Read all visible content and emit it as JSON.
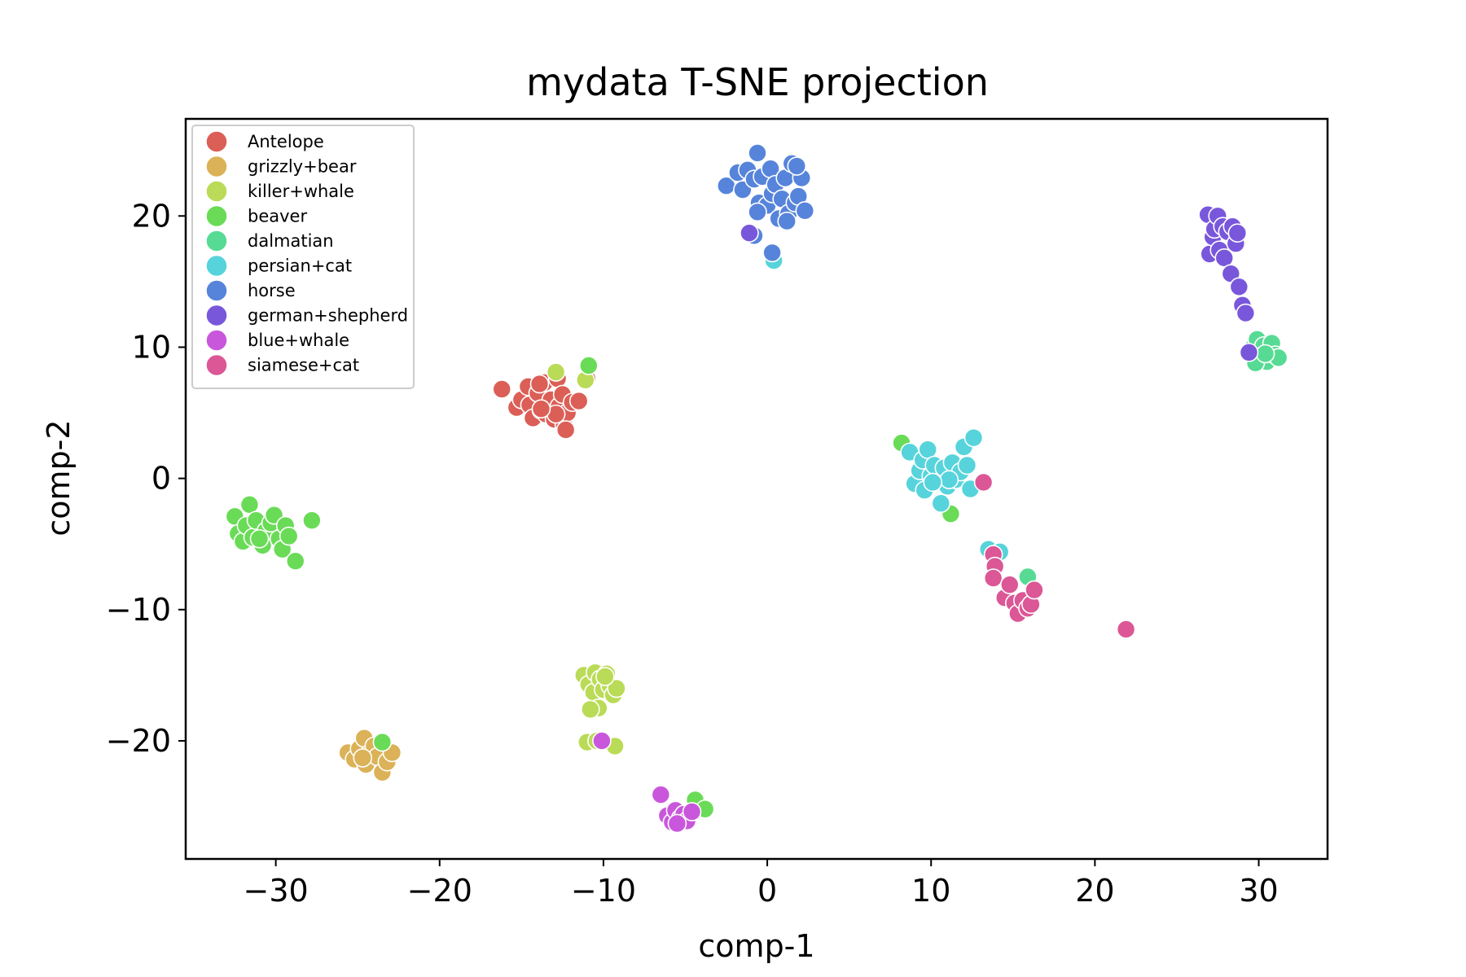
{
  "chart_data": {
    "type": "scatter",
    "title": "mydata T-SNE projection",
    "xlabel": "comp-1",
    "ylabel": "comp-2",
    "xlim": [
      -35.5,
      34.2
    ],
    "ylim": [
      -29.0,
      27.4
    ],
    "xticks": [
      -30,
      -20,
      -10,
      0,
      10,
      20,
      30
    ],
    "yticks": [
      -20,
      -10,
      0,
      10,
      20
    ],
    "xtick_labels": [
      "−30",
      "−20",
      "−10",
      "0",
      "10",
      "20",
      "30"
    ],
    "ytick_labels": [
      "−20",
      "−10",
      "0",
      "10",
      "20"
    ],
    "grid": false,
    "legend": "top-left",
    "series": [
      {
        "name": "Antelope",
        "color": "#db5f57",
        "points": [
          [
            -16.2,
            6.8
          ],
          [
            -15.3,
            5.4
          ],
          [
            -15.0,
            6.0
          ],
          [
            -14.6,
            7.0
          ],
          [
            -14.5,
            5.6
          ],
          [
            -14.3,
            4.6
          ],
          [
            -14.0,
            6.5
          ],
          [
            -13.8,
            5.2
          ],
          [
            -13.6,
            7.3
          ],
          [
            -13.5,
            4.9
          ],
          [
            -13.2,
            6.0
          ],
          [
            -13.0,
            4.5
          ],
          [
            -12.8,
            7.6
          ],
          [
            -12.7,
            5.5
          ],
          [
            -12.5,
            6.4
          ],
          [
            -12.4,
            4.1
          ],
          [
            -12.2,
            5.0
          ],
          [
            -11.9,
            5.8
          ],
          [
            -13.9,
            7.2
          ],
          [
            -12.9,
            4.9
          ],
          [
            -11.5,
            5.9
          ],
          [
            -12.3,
            3.7
          ],
          [
            -13.8,
            5.3
          ],
          [
            -11.0,
            7.6
          ]
        ]
      },
      {
        "name": "grizzly+bear",
        "color": "#dbb257",
        "points": [
          [
            -25.6,
            -20.9
          ],
          [
            -25.2,
            -21.4
          ],
          [
            -24.9,
            -20.6
          ],
          [
            -24.6,
            -19.8
          ],
          [
            -24.5,
            -21.8
          ],
          [
            -24.3,
            -21.0
          ],
          [
            -24.0,
            -20.4
          ],
          [
            -23.8,
            -21.2
          ],
          [
            -23.5,
            -22.4
          ],
          [
            -23.2,
            -21.6
          ],
          [
            -22.9,
            -20.9
          ],
          [
            -24.7,
            -21.3
          ]
        ]
      },
      {
        "name": "killer+whale",
        "color": "#badb57",
        "points": [
          [
            -11.2,
            -15.0
          ],
          [
            -10.9,
            -15.7
          ],
          [
            -10.6,
            -16.3
          ],
          [
            -10.5,
            -14.8
          ],
          [
            -10.3,
            -17.5
          ],
          [
            -10.2,
            -15.3
          ],
          [
            -10.0,
            -16.1
          ],
          [
            -9.8,
            -14.9
          ],
          [
            -9.6,
            -15.8
          ],
          [
            -9.4,
            -16.5
          ],
          [
            -9.2,
            -16.0
          ],
          [
            -9.9,
            -15.1
          ],
          [
            -10.8,
            -17.6
          ],
          [
            -11.0,
            -20.1
          ],
          [
            -10.4,
            -20.0
          ],
          [
            -9.3,
            -20.4
          ],
          [
            -12.9,
            8.1
          ],
          [
            -11.1,
            7.5
          ]
        ]
      },
      {
        "name": "beaver",
        "color": "#6adb57",
        "points": [
          [
            -32.5,
            -2.9
          ],
          [
            -32.3,
            -4.2
          ],
          [
            -32.0,
            -4.8
          ],
          [
            -31.8,
            -3.6
          ],
          [
            -31.6,
            -2.0
          ],
          [
            -31.4,
            -4.5
          ],
          [
            -31.2,
            -3.2
          ],
          [
            -30.8,
            -5.1
          ],
          [
            -30.6,
            -4.0
          ],
          [
            -30.3,
            -3.4
          ],
          [
            -30.1,
            -2.8
          ],
          [
            -29.8,
            -4.6
          ],
          [
            -29.6,
            -5.4
          ],
          [
            -29.4,
            -3.6
          ],
          [
            -29.2,
            -4.4
          ],
          [
            -31.0,
            -4.6
          ],
          [
            -28.8,
            -6.3
          ],
          [
            -27.8,
            -3.2
          ],
          [
            -10.9,
            8.6
          ],
          [
            8.2,
            2.7
          ],
          [
            11.2,
            -2.7
          ],
          [
            -23.5,
            -20.1
          ],
          [
            -4.4,
            -24.5
          ],
          [
            -3.8,
            -25.2
          ]
        ]
      },
      {
        "name": "dalmatian",
        "color": "#57db94",
        "points": [
          [
            29.6,
            9.9
          ],
          [
            29.9,
            10.6
          ],
          [
            30.1,
            9.2
          ],
          [
            30.3,
            10.1
          ],
          [
            30.5,
            8.9
          ],
          [
            30.6,
            9.6
          ],
          [
            30.8,
            10.3
          ],
          [
            31.0,
            9.4
          ],
          [
            31.2,
            9.2
          ],
          [
            29.8,
            8.8
          ],
          [
            30.4,
            9.5
          ],
          [
            15.9,
            -7.5
          ]
        ]
      },
      {
        "name": "persian+cat",
        "color": "#57d3db",
        "points": [
          [
            8.7,
            2.0
          ],
          [
            9.0,
            -0.4
          ],
          [
            9.3,
            0.6
          ],
          [
            9.5,
            1.4
          ],
          [
            9.6,
            -0.9
          ],
          [
            9.8,
            2.2
          ],
          [
            10.0,
            0.2
          ],
          [
            10.2,
            1.0
          ],
          [
            10.4,
            -0.3
          ],
          [
            10.6,
            -1.9
          ],
          [
            10.8,
            0.8
          ],
          [
            11.0,
            -0.6
          ],
          [
            11.3,
            1.2
          ],
          [
            11.5,
            -0.1
          ],
          [
            11.8,
            0.5
          ],
          [
            12.0,
            2.4
          ],
          [
            12.2,
            1.0
          ],
          [
            12.4,
            -0.8
          ],
          [
            12.6,
            3.1
          ],
          [
            11.1,
            -0.1
          ],
          [
            10.1,
            -0.3
          ],
          [
            13.5,
            -5.4
          ],
          [
            14.2,
            -5.6
          ],
          [
            0.4,
            16.6
          ]
        ]
      },
      {
        "name": "horse",
        "color": "#5784db",
        "points": [
          [
            -2.5,
            22.3
          ],
          [
            -1.8,
            23.3
          ],
          [
            -1.5,
            22.0
          ],
          [
            -1.2,
            23.5
          ],
          [
            -0.8,
            22.8
          ],
          [
            -0.6,
            24.8
          ],
          [
            -0.5,
            21.0
          ],
          [
            -0.3,
            23.0
          ],
          [
            0.0,
            20.8
          ],
          [
            0.2,
            23.6
          ],
          [
            0.3,
            21.7
          ],
          [
            0.5,
            22.4
          ],
          [
            0.7,
            19.8
          ],
          [
            0.9,
            21.3
          ],
          [
            1.1,
            22.9
          ],
          [
            1.3,
            20.2
          ],
          [
            1.5,
            24.0
          ],
          [
            1.7,
            21.0
          ],
          [
            1.9,
            21.5
          ],
          [
            2.1,
            22.9
          ],
          [
            2.3,
            20.4
          ],
          [
            1.8,
            23.8
          ],
          [
            -0.8,
            18.5
          ],
          [
            0.3,
            17.2
          ],
          [
            -0.6,
            20.3
          ],
          [
            1.2,
            19.6
          ]
        ]
      },
      {
        "name": "german+shepherd",
        "color": "#7957db",
        "points": [
          [
            26.9,
            20.1
          ],
          [
            27.0,
            17.1
          ],
          [
            27.2,
            18.4
          ],
          [
            27.3,
            19.0
          ],
          [
            27.5,
            20.0
          ],
          [
            27.6,
            17.4
          ],
          [
            27.8,
            19.2
          ],
          [
            27.9,
            16.8
          ],
          [
            28.1,
            18.8
          ],
          [
            28.3,
            15.6
          ],
          [
            28.4,
            19.2
          ],
          [
            28.6,
            17.9
          ],
          [
            28.8,
            14.6
          ],
          [
            29.0,
            13.2
          ],
          [
            29.2,
            12.6
          ],
          [
            28.7,
            18.7
          ],
          [
            -1.1,
            18.7
          ],
          [
            29.4,
            9.6
          ]
        ]
      },
      {
        "name": "blue+whale",
        "color": "#c957db",
        "points": [
          [
            -6.5,
            -24.1
          ],
          [
            -6.1,
            -25.7
          ],
          [
            -5.8,
            -26.2
          ],
          [
            -5.6,
            -25.3
          ],
          [
            -5.3,
            -25.9
          ],
          [
            -5.1,
            -25.6
          ],
          [
            -4.9,
            -26.1
          ],
          [
            -4.6,
            -25.4
          ],
          [
            -5.5,
            -26.3
          ],
          [
            -10.1,
            -20.0
          ]
        ]
      },
      {
        "name": "siamese+cat",
        "color": "#db5796",
        "points": [
          [
            13.2,
            -0.3
          ],
          [
            13.8,
            -5.8
          ],
          [
            13.9,
            -6.7
          ],
          [
            13.8,
            -7.6
          ],
          [
            14.5,
            -9.1
          ],
          [
            14.8,
            -8.1
          ],
          [
            15.1,
            -9.5
          ],
          [
            15.3,
            -10.3
          ],
          [
            15.6,
            -9.3
          ],
          [
            15.9,
            -9.9
          ],
          [
            16.1,
            -9.6
          ],
          [
            16.3,
            -8.5
          ],
          [
            21.9,
            -11.5
          ]
        ]
      }
    ]
  }
}
